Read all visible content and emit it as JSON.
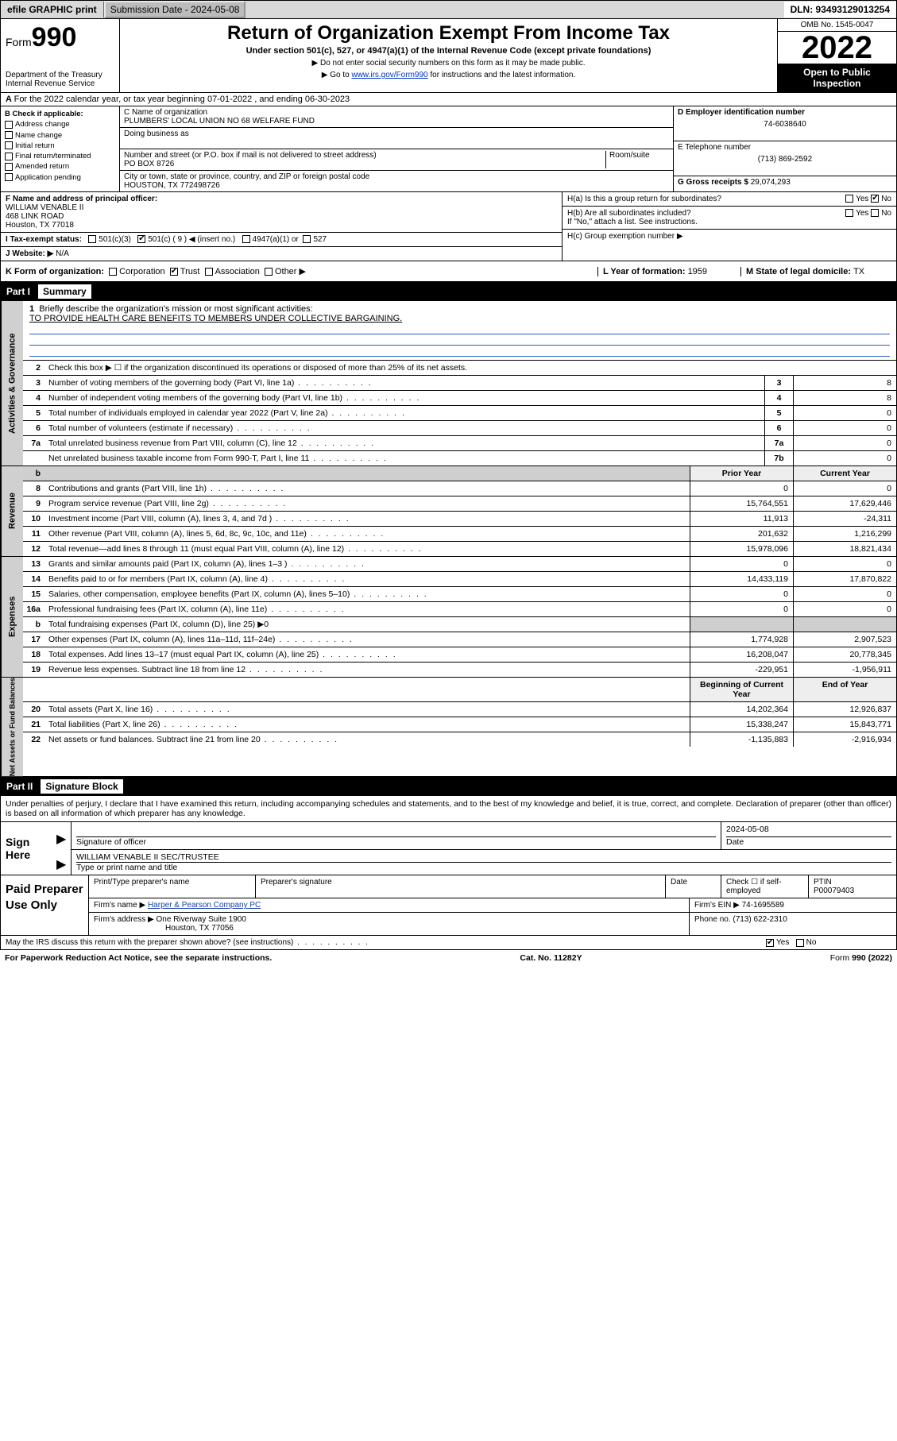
{
  "topbar": {
    "efile_label": "efile GRAPHIC print",
    "submission_label": "Submission Date - 2024-05-08",
    "dln_label": "DLN: 93493129013254"
  },
  "header": {
    "form_prefix": "Form",
    "form_number": "990",
    "dept": "Department of the Treasury",
    "irs": "Internal Revenue Service",
    "title": "Return of Organization Exempt From Income Tax",
    "subtitle": "Under section 501(c), 527, or 4947(a)(1) of the Internal Revenue Code (except private foundations)",
    "note1": "▶ Do not enter social security numbers on this form as it may be made public.",
    "note2_pre": "▶ Go to ",
    "note2_link": "www.irs.gov/Form990",
    "note2_post": " for instructions and the latest information.",
    "omb": "OMB No. 1545-0047",
    "year": "2022",
    "open_pub": "Open to Public Inspection"
  },
  "lineA": "For the 2022 calendar year, or tax year beginning 07-01-2022   , and ending 06-30-2023",
  "boxB": {
    "label": "B Check if applicable:",
    "opts": [
      "Address change",
      "Name change",
      "Initial return",
      "Final return/terminated",
      "Amended return",
      "Application pending"
    ]
  },
  "boxC": {
    "name_label": "C Name of organization",
    "name": "PLUMBERS' LOCAL UNION NO 68 WELFARE FUND",
    "dba_label": "Doing business as",
    "addr_label": "Number and street (or P.O. box if mail is not delivered to street address)",
    "room_label": "Room/suite",
    "addr": "PO BOX 8726",
    "city_label": "City or town, state or province, country, and ZIP or foreign postal code",
    "city": "HOUSTON, TX  772498726"
  },
  "boxD": {
    "label": "D Employer identification number",
    "val": "74-6038640"
  },
  "boxE": {
    "label": "E Telephone number",
    "val": "(713) 869-2592"
  },
  "boxG": {
    "label": "G Gross receipts $",
    "val": "29,074,293"
  },
  "boxF": {
    "label": "F Name and address of principal officer:",
    "name": "WILLIAM VENABLE II",
    "addr1": "468 LINK ROAD",
    "addr2": "Houston, TX  77018"
  },
  "boxH": {
    "a": "H(a)  Is this a group return for subordinates?",
    "b": "H(b)  Are all subordinates included?",
    "bnote": "If \"No,\" attach a list. See instructions.",
    "c": "H(c)  Group exemption number ▶",
    "yes": "Yes",
    "no": "No"
  },
  "boxI": {
    "label": "I  Tax-exempt status:",
    "o1": "501(c)(3)",
    "o2": "501(c) ( 9 ) ◀ (insert no.)",
    "o3": "4947(a)(1) or",
    "o4": "527"
  },
  "boxJ": {
    "label": "J  Website: ▶",
    "val": "N/A"
  },
  "boxK": {
    "label": "K Form of organization:",
    "o1": "Corporation",
    "o2": "Trust",
    "o3": "Association",
    "o4": "Other ▶"
  },
  "boxL": {
    "label": "L Year of formation: ",
    "val": "1959"
  },
  "boxM": {
    "label": "M State of legal domicile: ",
    "val": "TX"
  },
  "part1": {
    "hdr": "Part I",
    "title": "Summary",
    "l1_label": "Briefly describe the organization's mission or most significant activities:",
    "l1_text": "TO PROVIDE HEALTH CARE BENEFITS TO MEMBERS UNDER COLLECTIVE BARGAINING.",
    "l2": "Check this box ▶ ☐  if the organization discontinued its operations or disposed of more than 25% of its net assets.",
    "rows_gov": [
      {
        "n": "3",
        "t": "Number of voting members of the governing body (Part VI, line 1a)",
        "b": "3",
        "v": "8"
      },
      {
        "n": "4",
        "t": "Number of independent voting members of the governing body (Part VI, line 1b)",
        "b": "4",
        "v": "8"
      },
      {
        "n": "5",
        "t": "Total number of individuals employed in calendar year 2022 (Part V, line 2a)",
        "b": "5",
        "v": "0"
      },
      {
        "n": "6",
        "t": "Total number of volunteers (estimate if necessary)",
        "b": "6",
        "v": "0"
      },
      {
        "n": "7a",
        "t": "Total unrelated business revenue from Part VIII, column (C), line 12",
        "b": "7a",
        "v": "0"
      },
      {
        "n": "",
        "t": "Net unrelated business taxable income from Form 990-T, Part I, line 11",
        "b": "7b",
        "v": "0"
      }
    ],
    "col_prior": "Prior Year",
    "col_curr": "Current Year",
    "rows_rev": [
      {
        "n": "8",
        "t": "Contributions and grants (Part VIII, line 1h)",
        "p": "0",
        "c": "0"
      },
      {
        "n": "9",
        "t": "Program service revenue (Part VIII, line 2g)",
        "p": "15,764,551",
        "c": "17,629,446"
      },
      {
        "n": "10",
        "t": "Investment income (Part VIII, column (A), lines 3, 4, and 7d )",
        "p": "11,913",
        "c": "-24,311"
      },
      {
        "n": "11",
        "t": "Other revenue (Part VIII, column (A), lines 5, 6d, 8c, 9c, 10c, and 11e)",
        "p": "201,632",
        "c": "1,216,299"
      },
      {
        "n": "12",
        "t": "Total revenue—add lines 8 through 11 (must equal Part VIII, column (A), line 12)",
        "p": "15,978,096",
        "c": "18,821,434"
      }
    ],
    "rows_exp": [
      {
        "n": "13",
        "t": "Grants and similar amounts paid (Part IX, column (A), lines 1–3 )",
        "p": "0",
        "c": "0"
      },
      {
        "n": "14",
        "t": "Benefits paid to or for members (Part IX, column (A), line 4)",
        "p": "14,433,119",
        "c": "17,870,822"
      },
      {
        "n": "15",
        "t": "Salaries, other compensation, employee benefits (Part IX, column (A), lines 5–10)",
        "p": "0",
        "c": "0"
      },
      {
        "n": "16a",
        "t": "Professional fundraising fees (Part IX, column (A), line 11e)",
        "p": "0",
        "c": "0"
      },
      {
        "n": "b",
        "t": "Total fundraising expenses (Part IX, column (D), line 25) ▶0",
        "p": "",
        "c": "",
        "shade": true
      },
      {
        "n": "17",
        "t": "Other expenses (Part IX, column (A), lines 11a–11d, 11f–24e)",
        "p": "1,774,928",
        "c": "2,907,523"
      },
      {
        "n": "18",
        "t": "Total expenses. Add lines 13–17 (must equal Part IX, column (A), line 25)",
        "p": "16,208,047",
        "c": "20,778,345"
      },
      {
        "n": "19",
        "t": "Revenue less expenses. Subtract line 18 from line 12",
        "p": "-229,951",
        "c": "-1,956,911"
      }
    ],
    "col_begin": "Beginning of Current Year",
    "col_end": "End of Year",
    "rows_net": [
      {
        "n": "20",
        "t": "Total assets (Part X, line 16)",
        "p": "14,202,364",
        "c": "12,926,837"
      },
      {
        "n": "21",
        "t": "Total liabilities (Part X, line 26)",
        "p": "15,338,247",
        "c": "15,843,771"
      },
      {
        "n": "22",
        "t": "Net assets or fund balances. Subtract line 21 from line 20",
        "p": "-1,135,883",
        "c": "-2,916,934"
      }
    ],
    "tabs": [
      "Activities & Governance",
      "Revenue",
      "Expenses",
      "Net Assets or Fund Balances"
    ]
  },
  "part2": {
    "hdr": "Part II",
    "title": "Signature Block",
    "penalty": "Under penalties of perjury, I declare that I have examined this return, including accompanying schedules and statements, and to the best of my knowledge and belief, it is true, correct, and complete. Declaration of preparer (other than officer) is based on all information of which preparer has any knowledge.",
    "sign_here": "Sign Here",
    "sig_officer_label": "Signature of officer",
    "date_label": "Date",
    "date_val": "2024-05-08",
    "officer_name": "WILLIAM VENABLE II SEC/TRUSTEE",
    "officer_typelabel": "Type or print name and title",
    "paid": "Paid Preparer Use Only",
    "pp_name_label": "Print/Type preparer's name",
    "pp_sig_label": "Preparer's signature",
    "pp_date": "Date",
    "pp_check": "Check ☐ if self-employed",
    "pp_ptin_label": "PTIN",
    "pp_ptin": "P00079403",
    "firm_name_label": "Firm's name    ▶",
    "firm_name": "Harper & Pearson Company PC",
    "firm_ein_label": "Firm's EIN ▶",
    "firm_ein": "74-1695589",
    "firm_addr_label": "Firm's address ▶",
    "firm_addr1": "One Riverway Suite 1900",
    "firm_addr2": "Houston, TX  77056",
    "phone_label": "Phone no.",
    "phone": "(713) 622-2310",
    "may_irs": "May the IRS discuss this return with the preparer shown above? (see instructions)",
    "yes": "Yes",
    "no": "No"
  },
  "footer": {
    "left": "For Paperwork Reduction Act Notice, see the separate instructions.",
    "mid": "Cat. No. 11282Y",
    "right": "Form 990 (2022)"
  }
}
